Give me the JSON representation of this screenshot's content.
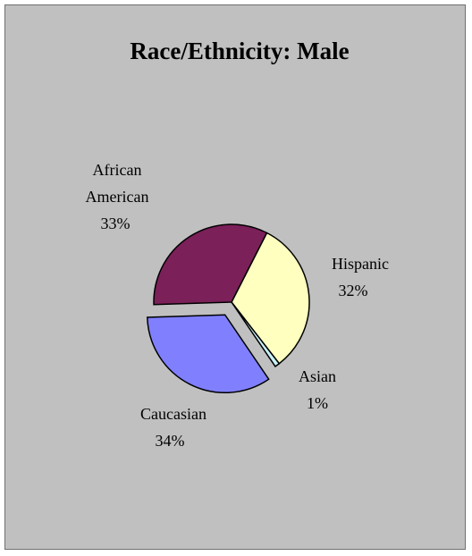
{
  "chart_data": {
    "type": "pie",
    "title": "Race/Ethnicity: Male",
    "slices": [
      {
        "label": "Hispanic",
        "value": 32,
        "display": "32%",
        "color": "#ffffc0"
      },
      {
        "label": "Asian",
        "value": 1,
        "display": "1%",
        "color": "#c8f0f8"
      },
      {
        "label": "Caucasian",
        "value": 34,
        "display": "34%",
        "color": "#8080ff"
      },
      {
        "label": "African American",
        "value": 33,
        "display": "33%",
        "color": "#7b2059"
      }
    ],
    "exploded": [
      "Caucasian"
    ],
    "legend": "none",
    "background": "#c0c0c0"
  }
}
